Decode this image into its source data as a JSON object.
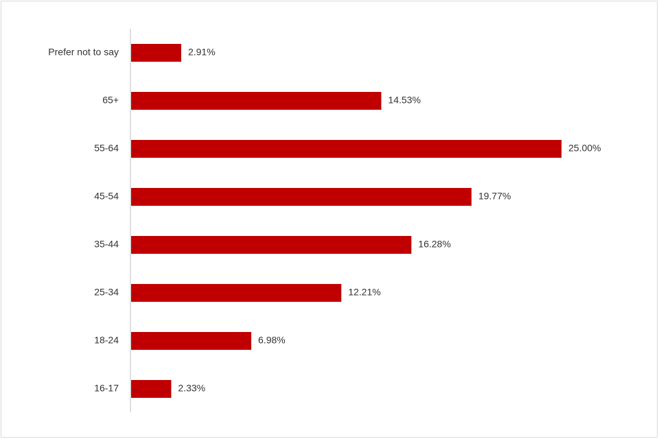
{
  "chart_data": {
    "type": "hbar",
    "categories": [
      "Prefer not to say",
      "65+",
      "55-64",
      "45-54",
      "35-44",
      "25-34",
      "18-24",
      "16-17"
    ],
    "values": [
      2.91,
      14.53,
      25.0,
      19.77,
      16.28,
      12.21,
      6.98,
      2.33
    ],
    "value_labels": [
      "2.91%",
      "14.53%",
      "25.00%",
      "19.77%",
      "16.28%",
      "12.21%",
      "6.98%",
      "2.33%"
    ],
    "color": "#c00000"
  }
}
